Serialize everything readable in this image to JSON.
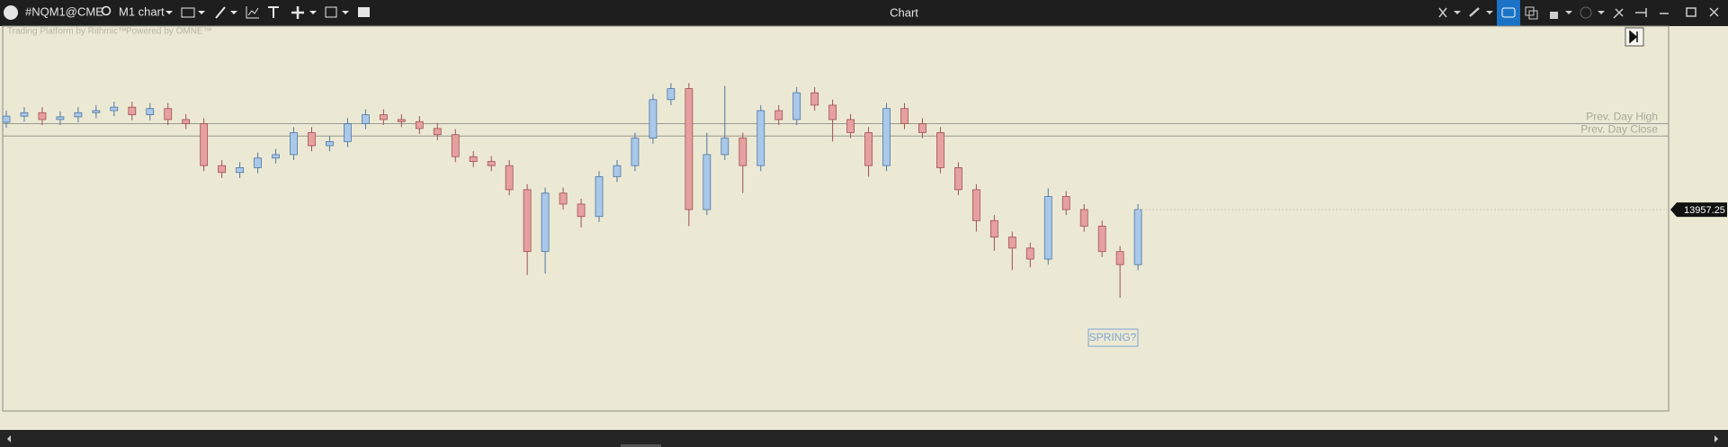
{
  "window": {
    "title": "Chart",
    "symbol": "#NQM1@CME",
    "timeframe": "M1 chart"
  },
  "watermark": [
    "Trading Platform by Rithmic™",
    "Powered by OMNE™"
  ],
  "chart_data": {
    "type": "candlestick",
    "ylim": [
      13884,
      14024
    ],
    "up_color": "#a9c8ea",
    "up_edge": "#4f76a3",
    "down_color": "#e7a0a0",
    "down_edge": "#a05050",
    "open": [
      13989,
      13991.25,
      13992.5,
      13990,
      13991,
      13992.5,
      13993.25,
      13994.5,
      13991.75,
      13994,
      13990,
      13988.5,
      13973.25,
      13970.75,
      13972.5,
      13976,
      13977.25,
      13985.25,
      13980.5,
      13982,
      13988.5,
      13991.75,
      13990,
      13989.25,
      13986.75,
      13984.5,
      13976.5,
      13974.75,
      13973.25,
      13964.5,
      13942,
      13963.25,
      13959.25,
      13954.75,
      13969.25,
      13973.25,
      13983.25,
      13997.25,
      14001.25,
      13957.25,
      13977.25,
      13983.25,
      13973.25,
      13993.25,
      13990,
      13999.75,
      13995.25,
      13990,
      13985.25,
      13973.25,
      13994,
      13988.5,
      13985.25,
      13972.5,
      13964.5,
      13953.25,
      13947.25,
      13943.25,
      13939.25,
      13962,
      13957.25,
      13951.25,
      13942,
      13937.25
    ],
    "high": [
      13993.25,
      13994.5,
      13994.5,
      13993,
      13994.5,
      13995.25,
      13996.5,
      13996.5,
      13996,
      13996,
      13992,
      13990.5,
      13975.25,
      13974.5,
      13978,
      13979.25,
      13987.25,
      13987.25,
      13984,
      13990.5,
      13993.75,
      13993.75,
      13992,
      13991.25,
      13988.75,
      13986.5,
      13978.5,
      13976.75,
      13975.25,
      13966.5,
      13965.25,
      13965.25,
      13961.25,
      13971.25,
      13975.25,
      13985.25,
      13999.25,
      14003.25,
      14003.25,
      13985.25,
      14002.25,
      13985.25,
      13995.25,
      13995.25,
      14001.75,
      14001.75,
      13997.25,
      13992,
      13987.25,
      13996,
      13996,
      13990.5,
      13987.25,
      13974.5,
      13966.5,
      13955.25,
      13949.25,
      13945.25,
      13965,
      13964,
      13959.25,
      13953.25,
      13944,
      13959.25
    ],
    "low": [
      13987,
      13989.25,
      13988,
      13988,
      13989,
      13990.5,
      13991.25,
      13989.75,
      13989.75,
      13988,
      13986.5,
      13971.25,
      13968.75,
      13968.75,
      13970.5,
      13974,
      13975.25,
      13978.5,
      13978.5,
      13980,
      13986.5,
      13988,
      13987.25,
      13984.75,
      13982.5,
      13974.5,
      13972.75,
      13971.25,
      13962.5,
      13933.5,
      13934,
      13957.25,
      13950.75,
      13952.75,
      13967.25,
      13971.25,
      13981.25,
      13995.25,
      13951.25,
      13955.25,
      13975.25,
      13963.25,
      13971.25,
      13988,
      13988,
      13993.25,
      13982,
      13983.25,
      13969.25,
      13971.25,
      13986.5,
      13983.25,
      13970.5,
      13962.5,
      13949.25,
      13942.25,
      13935.25,
      13936.25,
      13937.25,
      13955.25,
      13949.25,
      13940,
      13925.25,
      13935.25
    ],
    "close": [
      13991.25,
      13992.5,
      13990,
      13991,
      13992.5,
      13993.25,
      13994.5,
      13991.75,
      13994,
      13990,
      13988.5,
      13973.25,
      13970.75,
      13972.5,
      13976,
      13977.25,
      13985.25,
      13980.5,
      13982,
      13988.5,
      13991.75,
      13990,
      13989.25,
      13986.75,
      13984.5,
      13976.5,
      13974.75,
      13973.25,
      13964.5,
      13942,
      13963.25,
      13959.25,
      13954.75,
      13969.25,
      13973.25,
      13983.25,
      13997.25,
      14001.25,
      13957.25,
      13977.25,
      13983.25,
      13973.25,
      13993.25,
      13990,
      13999.75,
      13995.25,
      13990,
      13985.25,
      13973.25,
      13994,
      13988.5,
      13985.25,
      13972.5,
      13964.5,
      13953.25,
      13947.25,
      13943.25,
      13939.25,
      13962,
      13957.25,
      13951.25,
      13942,
      13937.25,
      13957.25
    ],
    "levels": [
      {
        "name": "Prev. Day High",
        "value": 13988.5
      },
      {
        "name": "Prev. Day Close",
        "value": 13984
      }
    ],
    "last_price": 13957.25,
    "annotation": "SPRING?"
  }
}
